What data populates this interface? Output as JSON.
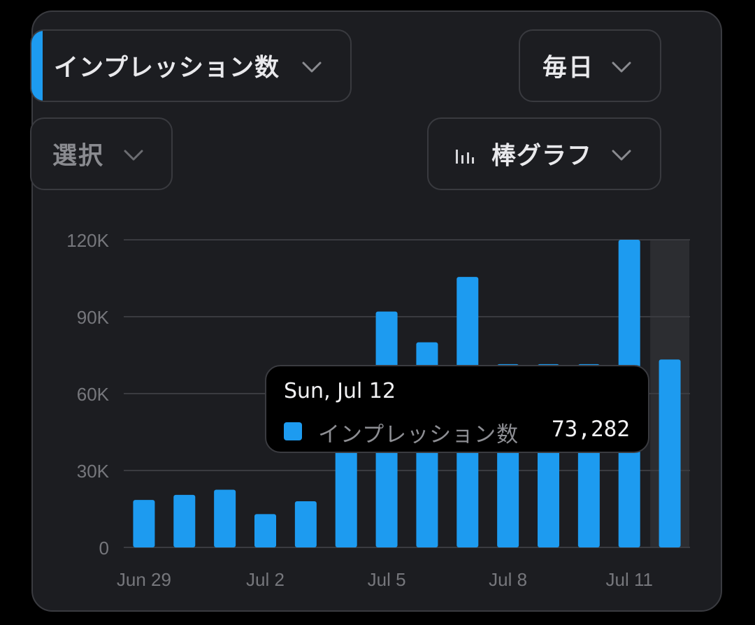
{
  "colors": {
    "background": "#000000",
    "card": "#1c1d21",
    "accent": "#1d9bf0",
    "axis_text": "#76777c",
    "gridline": "#3a3b40",
    "highlight": "#2c2d31"
  },
  "controls": {
    "metric_label": "インプレッション数",
    "period_label": "毎日",
    "select_label": "選択",
    "chart_type_label": "棒グラフ",
    "chart_type_icon": "bar-chart-icon",
    "dropdown_icon": "chevron-down-icon"
  },
  "tooltip": {
    "date": "Sun, Jul 12",
    "series": "インプレッション数",
    "value": "73,282"
  },
  "chart_data": {
    "type": "bar",
    "categories": [
      "Jun 29",
      "Jun 30",
      "Jul 1",
      "Jul 2",
      "Jul 3",
      "Jul 4",
      "Jul 5",
      "Jul 6",
      "Jul 7",
      "Jul 8",
      "Jul 9",
      "Jul 10",
      "Jul 11",
      "Jul 12"
    ],
    "x_tick_labels": [
      "Jun 29",
      "Jul 2",
      "Jul 5",
      "Jul 8",
      "Jul 11"
    ],
    "series": [
      {
        "name": "インプレッション数",
        "color": "#1d9bf0",
        "values": [
          18500,
          20500,
          22500,
          13000,
          18000,
          45000,
          92000,
          80000,
          105500,
          71500,
          71500,
          71500,
          120000,
          73282
        ]
      }
    ],
    "ylim": [
      0,
      120000
    ],
    "y_ticks": [
      0,
      30000,
      60000,
      90000,
      120000
    ],
    "y_tick_labels": [
      "0",
      "30K",
      "60K",
      "90K",
      "120K"
    ],
    "highlighted_category": "Jul 12",
    "grid": true,
    "legend": "none"
  }
}
